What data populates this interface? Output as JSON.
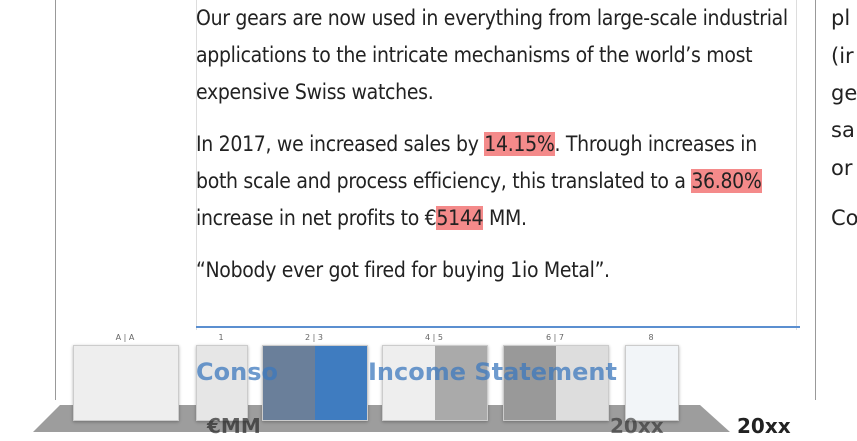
{
  "document": {
    "paragraphs": [
      {
        "parts": [
          "Our gears are now used in everything from large-scale industrial applications to the intricate mechanisms of the world’s most expensive Swiss watches."
        ]
      },
      {
        "parts": [
          "In 2017, we increased sales by ",
          "14.15%",
          ". Through increases in both scale and process efficiency, this translated to a ",
          "36.80%",
          " increase in net profits to €",
          "5144",
          " MM."
        ]
      },
      {
        "parts": [
          "“Nobody ever got fired for buying 1io Metal”."
        ]
      }
    ],
    "right_column": [
      "pl",
      "(ir",
      "ge",
      "sa",
      "or",
      "Co"
    ],
    "heading_left": "Conso",
    "heading_right": "Income Statement",
    "unit_label": "€MM",
    "year_mid": "20xx",
    "year_right": "20xx",
    "thumbnails": [
      "A | A",
      "1",
      "2 | 3",
      "4 | 5",
      "6 | 7",
      "8"
    ]
  }
}
